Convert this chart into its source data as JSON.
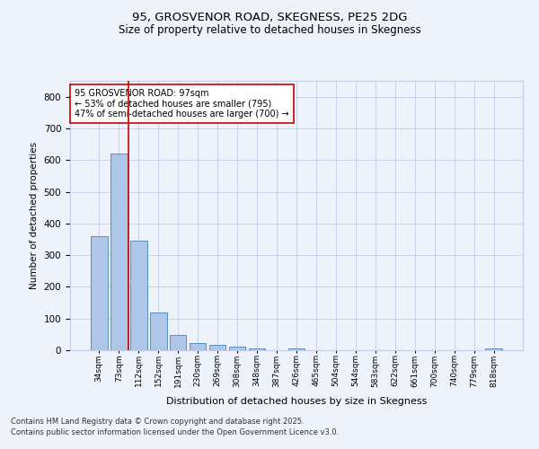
{
  "title1": "95, GROSVENOR ROAD, SKEGNESS, PE25 2DG",
  "title2": "Size of property relative to detached houses in Skegness",
  "xlabel": "Distribution of detached houses by size in Skegness",
  "ylabel": "Number of detached properties",
  "categories": [
    "34sqm",
    "73sqm",
    "112sqm",
    "152sqm",
    "191sqm",
    "230sqm",
    "269sqm",
    "308sqm",
    "348sqm",
    "387sqm",
    "426sqm",
    "465sqm",
    "504sqm",
    "544sqm",
    "583sqm",
    "622sqm",
    "661sqm",
    "700sqm",
    "740sqm",
    "779sqm",
    "818sqm"
  ],
  "values": [
    360,
    620,
    345,
    120,
    47,
    22,
    18,
    12,
    5,
    0,
    5,
    0,
    0,
    0,
    0,
    0,
    0,
    0,
    0,
    0,
    5
  ],
  "bar_color": "#aec6e8",
  "bar_edge_color": "#5a8fbe",
  "vline_x": 1.5,
  "vline_color": "#cc0000",
  "annotation_text": "95 GROSVENOR ROAD: 97sqm\n← 53% of detached houses are smaller (795)\n47% of semi-detached houses are larger (700) →",
  "annotation_box_color": "#ffffff",
  "annotation_box_edge": "#cc0000",
  "ylim": [
    0,
    850
  ],
  "yticks": [
    0,
    100,
    200,
    300,
    400,
    500,
    600,
    700,
    800
  ],
  "footer1": "Contains HM Land Registry data © Crown copyright and database right 2025.",
  "footer2": "Contains public sector information licensed under the Open Government Licence v3.0.",
  "bg_color": "#eef2fb",
  "plot_bg_color": "#eef2fb"
}
